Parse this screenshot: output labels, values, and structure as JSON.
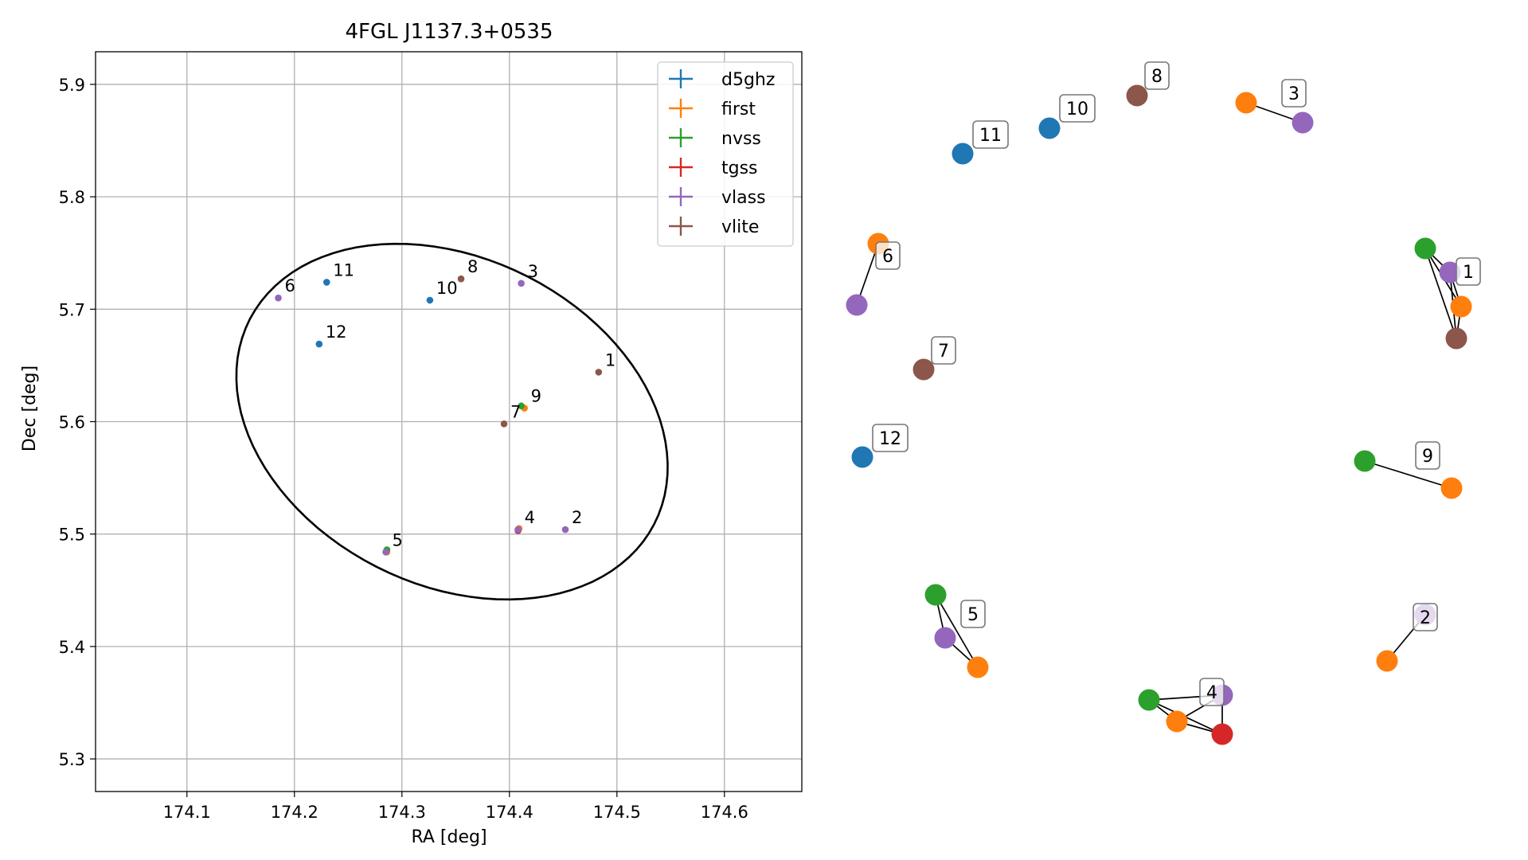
{
  "chart_data": [
    {
      "type": "scatter",
      "title": "4FGL J1137.3+0535",
      "xlabel": "RA [deg]",
      "ylabel": "Dec [deg]",
      "xlim": [
        174.015,
        174.672
      ],
      "ylim": [
        5.271,
        5.929
      ],
      "xticks": [
        174.1,
        174.2,
        174.3,
        174.4,
        174.5,
        174.6
      ],
      "yticks": [
        5.3,
        5.4,
        5.5,
        5.6,
        5.7,
        5.8,
        5.9
      ],
      "xtick_labels": [
        "174.1",
        "174.2",
        "174.3",
        "174.4",
        "174.5",
        "174.6"
      ],
      "ytick_labels": [
        "5.3",
        "5.4",
        "5.5",
        "5.6",
        "5.7",
        "5.8",
        "5.9"
      ],
      "grid": true,
      "legend_position": "top-right",
      "series": [
        {
          "name": "d5ghz",
          "color": "#1f77b4",
          "points": [
            [
              174.23,
              5.724
            ],
            [
              174.326,
              5.708
            ],
            [
              174.223,
              5.669
            ]
          ]
        },
        {
          "name": "first",
          "color": "#ff7f0e",
          "points": [
            [
              174.414,
              5.612
            ],
            [
              174.409,
              5.505
            ],
            [
              174.286,
              5.484
            ]
          ]
        },
        {
          "name": "nvss",
          "color": "#2ca02c",
          "points": [
            [
              174.411,
              5.614
            ],
            [
              174.408,
              5.504
            ],
            [
              174.286,
              5.486
            ]
          ]
        },
        {
          "name": "tgss",
          "color": "#d62728",
          "points": [
            [
              174.408,
              5.503
            ]
          ]
        },
        {
          "name": "vlass",
          "color": "#9467bd",
          "points": [
            [
              174.185,
              5.71
            ],
            [
              174.411,
              5.723
            ],
            [
              174.452,
              5.504
            ],
            [
              174.408,
              5.504
            ],
            [
              174.285,
              5.484
            ]
          ]
        },
        {
          "name": "vlite",
          "color": "#8c564b",
          "points": [
            [
              174.483,
              5.644
            ],
            [
              174.395,
              5.598
            ],
            [
              174.355,
              5.727
            ]
          ]
        }
      ],
      "annotations": [
        {
          "text": "1",
          "x": 174.483,
          "y": 5.644
        },
        {
          "text": "2",
          "x": 174.452,
          "y": 5.504
        },
        {
          "text": "3",
          "x": 174.411,
          "y": 5.723
        },
        {
          "text": "4",
          "x": 174.408,
          "y": 5.504
        },
        {
          "text": "5",
          "x": 174.285,
          "y": 5.484
        },
        {
          "text": "6",
          "x": 174.185,
          "y": 5.71
        },
        {
          "text": "7",
          "x": 174.395,
          "y": 5.598
        },
        {
          "text": "8",
          "x": 174.355,
          "y": 5.727
        },
        {
          "text": "9",
          "x": 174.414,
          "y": 5.612
        },
        {
          "text": "10",
          "x": 174.326,
          "y": 5.708
        },
        {
          "text": "11",
          "x": 174.23,
          "y": 5.724
        },
        {
          "text": "12",
          "x": 174.223,
          "y": 5.669
        }
      ],
      "ellipse": {
        "center": [
          174.3466,
          5.6
        ],
        "semi_axes": [
          0.2092,
          0.1467
        ],
        "angle_deg": -23.4
      }
    },
    {
      "type": "network",
      "clusters": [
        {
          "label": "1",
          "nodes": [
            {
              "catalog": "nvss",
              "color": "#2ca02c"
            },
            {
              "catalog": "vlass",
              "color": "#9467bd"
            },
            {
              "catalog": "first",
              "color": "#ff7f0e"
            },
            {
              "catalog": "vlite",
              "color": "#8c564b"
            }
          ]
        },
        {
          "label": "2",
          "nodes": [
            {
              "catalog": "vlass",
              "color": "#9467bd"
            },
            {
              "catalog": "first",
              "color": "#ff7f0e"
            }
          ]
        },
        {
          "label": "3",
          "nodes": [
            {
              "catalog": "first",
              "color": "#ff7f0e"
            },
            {
              "catalog": "vlass",
              "color": "#9467bd"
            }
          ]
        },
        {
          "label": "4",
          "nodes": [
            {
              "catalog": "nvss",
              "color": "#2ca02c"
            },
            {
              "catalog": "vlass",
              "color": "#9467bd"
            },
            {
              "catalog": "first",
              "color": "#ff7f0e"
            },
            {
              "catalog": "tgss",
              "color": "#d62728"
            }
          ]
        },
        {
          "label": "5",
          "nodes": [
            {
              "catalog": "nvss",
              "color": "#2ca02c"
            },
            {
              "catalog": "vlass",
              "color": "#9467bd"
            },
            {
              "catalog": "first",
              "color": "#ff7f0e"
            }
          ]
        },
        {
          "label": "6",
          "nodes": [
            {
              "catalog": "first",
              "color": "#ff7f0e"
            },
            {
              "catalog": "vlass",
              "color": "#9467bd"
            }
          ]
        },
        {
          "label": "7",
          "nodes": [
            {
              "catalog": "vlite",
              "color": "#8c564b"
            }
          ]
        },
        {
          "label": "8",
          "nodes": [
            {
              "catalog": "vlite",
              "color": "#8c564b"
            }
          ]
        },
        {
          "label": "9",
          "nodes": [
            {
              "catalog": "nvss",
              "color": "#2ca02c"
            },
            {
              "catalog": "first",
              "color": "#ff7f0e"
            }
          ]
        },
        {
          "label": "10",
          "nodes": [
            {
              "catalog": "d5ghz",
              "color": "#1f77b4"
            }
          ]
        },
        {
          "label": "11",
          "nodes": [
            {
              "catalog": "d5ghz",
              "color": "#1f77b4"
            }
          ]
        },
        {
          "label": "12",
          "nodes": [
            {
              "catalog": "d5ghz",
              "color": "#1f77b4"
            }
          ]
        }
      ]
    }
  ]
}
